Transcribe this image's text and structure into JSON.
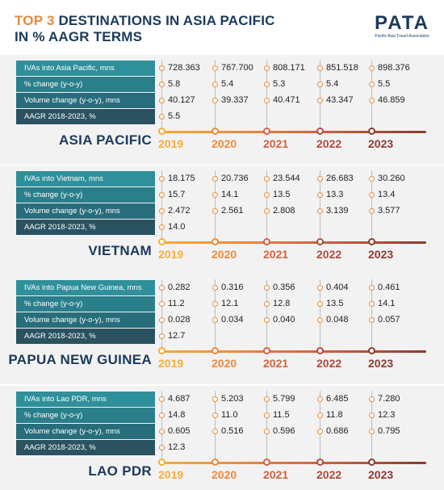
{
  "header": {
    "title_accent": "TOP 3",
    "title_line1": "DESTINATIONS IN ASIA PACIFIC",
    "title_line2": "IN % AAGR TERMS",
    "logo_text": "PATA",
    "logo_subtitle": "Pacific Asia Travel Association"
  },
  "colors": {
    "navy": "#1b3a5c",
    "orange": "#e8893a",
    "teal": "#2f8f9a",
    "dark_teal": "#2a5260",
    "panel_bg": "#f3f2f2"
  },
  "years": [
    "2019",
    "2020",
    "2021",
    "2022",
    "2023"
  ],
  "year_colors": [
    "#f7ad35",
    "#ee8a3c",
    "#d2613f",
    "#b24a3b",
    "#8c3a30"
  ],
  "chart_data": [
    {
      "type": "table",
      "title": "ASIA PACIFIC",
      "columns": [
        "2019",
        "2020",
        "2021",
        "2022",
        "2023"
      ],
      "rows": [
        {
          "label": "IVAs into Asia Pacific, mns",
          "values": [
            "728.363",
            "767.700",
            "808.171",
            "851.518",
            "898.376"
          ]
        },
        {
          "label": "% change (y-o-y)",
          "values": [
            "5.8",
            "5.4",
            "5.3",
            "5.4",
            "5.5"
          ]
        },
        {
          "label": "Volume change (y-o-y), mns",
          "values": [
            "40.127",
            "39.337",
            "40.471",
            "43.347",
            "46.859"
          ]
        },
        {
          "label": "AAGR 2018-2023, %",
          "values": [
            "5.5"
          ]
        }
      ]
    },
    {
      "type": "table",
      "title": "VIETNAM",
      "columns": [
        "2019",
        "2020",
        "2021",
        "2022",
        "2023"
      ],
      "rows": [
        {
          "label": "IVAs into Vietnam, mns",
          "values": [
            "18.175",
            "20.736",
            "23.544",
            "26.683",
            "30.260"
          ]
        },
        {
          "label": "% change (y-o-y)",
          "values": [
            "15.7",
            "14.1",
            "13.5",
            "13.3",
            "13.4"
          ]
        },
        {
          "label": "Volume change (y-o-y), mns",
          "values": [
            "2.472",
            "2.561",
            "2.808",
            "3.139",
            "3.577"
          ]
        },
        {
          "label": "AAGR 2018-2023, %",
          "values": [
            "14.0"
          ]
        }
      ]
    },
    {
      "type": "table",
      "title": "PAPUA NEW GUINEA",
      "columns": [
        "2019",
        "2020",
        "2021",
        "2022",
        "2023"
      ],
      "rows": [
        {
          "label": "IVAs into Papua New Guinea, mns",
          "values": [
            "0.282",
            "0.316",
            "0.356",
            "0.404",
            "0.461"
          ]
        },
        {
          "label": "% change (y-o-y)",
          "values": [
            "11.2",
            "12.1",
            "12.8",
            "13.5",
            "14.1"
          ]
        },
        {
          "label": "Volume change (y-o-y), mns",
          "values": [
            "0.028",
            "0.034",
            "0.040",
            "0.048",
            "0.057"
          ]
        },
        {
          "label": "AAGR 2018-2023, %",
          "values": [
            "12.7"
          ]
        }
      ]
    },
    {
      "type": "table",
      "title": "LAO PDR",
      "columns": [
        "2019",
        "2020",
        "2021",
        "2022",
        "2023"
      ],
      "rows": [
        {
          "label": "IVAs into Lao PDR, mns",
          "values": [
            "4.687",
            "5.203",
            "5.799",
            "6.485",
            "7.280"
          ]
        },
        {
          "label": "% change (y-o-y)",
          "values": [
            "14.8",
            "11.0",
            "11.5",
            "11.8",
            "12.3"
          ]
        },
        {
          "label": "Volume change (y-o-y), mns",
          "values": [
            "0.605",
            "0.516",
            "0.596",
            "0.686",
            "0.795"
          ]
        },
        {
          "label": "AAGR 2018-2023, %",
          "values": [
            "12.3"
          ]
        }
      ]
    }
  ]
}
